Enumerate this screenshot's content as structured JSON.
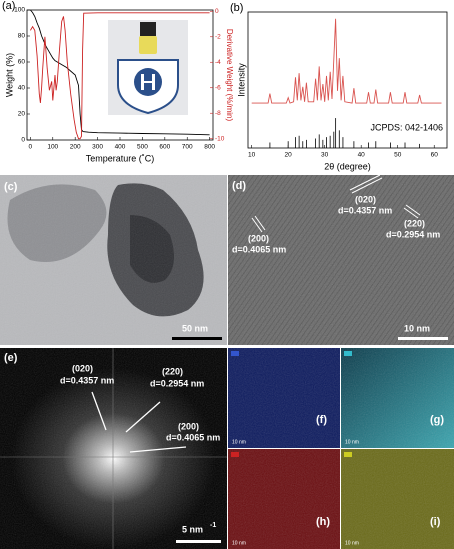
{
  "chart_data": [
    {
      "type": "line",
      "label": "(a)",
      "xlabel": "Temperature (˚C)",
      "ylabel": "Weight (%)",
      "y2label": "Derivative Weight (%/min)",
      "xlim": [
        -15,
        815
      ],
      "xticks": [
        0,
        100,
        200,
        300,
        400,
        500,
        600,
        700,
        800
      ],
      "ylim": [
        0,
        100
      ],
      "yticks": [
        0,
        20,
        40,
        60,
        80,
        100
      ],
      "y2lim": [
        -10.1,
        0.1
      ],
      "y2ticks": [
        0,
        -2,
        -4,
        -6,
        -8,
        -10
      ],
      "series": [
        {
          "color": "#000000",
          "x": [
            0,
            10,
            20,
            30,
            40,
            50,
            60,
            70,
            80,
            90,
            100,
            110,
            120,
            140,
            160,
            180,
            200,
            215,
            222,
            228,
            235,
            260,
            300,
            400,
            500,
            600,
            700,
            800
          ],
          "values": [
            100,
            98,
            95,
            90,
            86,
            80,
            76,
            72,
            69,
            66,
            63,
            61,
            60,
            58,
            56,
            53,
            50,
            42,
            20,
            8,
            6.5,
            6,
            5.6,
            5.3,
            5,
            4.8,
            4.5,
            4
          ]
        },
        {
          "color": "#cc2222",
          "axis": "y2",
          "x": [
            0,
            10,
            20,
            30,
            40,
            45,
            50,
            55,
            65,
            75,
            85,
            95,
            100,
            105,
            110,
            115,
            120,
            130,
            140,
            148,
            155,
            165,
            180,
            195,
            205,
            215,
            222,
            228,
            233,
            238,
            300,
            400,
            500,
            600,
            700,
            800
          ],
          "values": [
            -1.5,
            -1.2,
            -1.5,
            -3.5,
            -6.5,
            -7.2,
            -6,
            -4.5,
            -2,
            -4.5,
            -6.2,
            -5.5,
            -7,
            -6,
            -5,
            -6.2,
            -5.5,
            -3,
            -0.8,
            -0.4,
            -1.5,
            -4,
            -6.5,
            -8.5,
            -9.5,
            -10,
            -10,
            -9.8,
            -3,
            -0.15,
            -0.12,
            -0.12,
            -0.12,
            -0.12,
            -0.12,
            -0.12
          ]
        }
      ]
    },
    {
      "type": "line",
      "label": "(b)",
      "xlabel": "2θ (degree)",
      "ylabel": "Intensity",
      "annotation": "JCPDS: 042-1406",
      "xlim": [
        9,
        63.5
      ],
      "xticks": [
        10,
        20,
        30,
        40,
        50,
        60
      ],
      "ylim": [
        0,
        100
      ],
      "series": [
        {
          "color": "#d9534f",
          "x": [
            10,
            14.5,
            15,
            15.5,
            19.5,
            20,
            20.5,
            21.5,
            22,
            22.5,
            23,
            23.5,
            24,
            24.5,
            25,
            25.5,
            27,
            27.5,
            28,
            28.5,
            29,
            29.5,
            30,
            30.5,
            31,
            31.5,
            32,
            32.5,
            33,
            33.5,
            34,
            34.5,
            35,
            35.5,
            37.5,
            38,
            38.5,
            41.5,
            42,
            42.5,
            43.5,
            44,
            44.5,
            47.5,
            48,
            48.5,
            51.5,
            52,
            52.5,
            55.5,
            56,
            56.5,
            62
          ],
          "values": [
            33,
            33,
            40,
            33,
            33,
            37,
            33,
            34,
            52,
            35,
            55,
            35,
            45,
            34,
            48,
            34,
            34,
            51,
            35,
            60,
            35,
            47,
            34,
            53,
            35,
            56,
            36,
            65,
            95,
            42,
            66,
            35,
            53,
            34,
            33,
            44,
            33,
            33,
            41,
            33,
            33,
            43,
            33,
            33,
            41,
            33,
            33,
            41,
            33,
            33,
            39,
            33,
            33
          ]
        },
        {
          "color": "#000000",
          "style": "stick",
          "x": [
            15,
            20,
            22,
            23,
            24,
            25,
            27.5,
            28.5,
            29.5,
            30.5,
            31.5,
            32.5,
            33,
            34,
            35,
            38,
            42,
            44,
            48,
            52,
            56
          ],
          "values": [
            4,
            5,
            8,
            9,
            5,
            6,
            7,
            10,
            6,
            8,
            9,
            12,
            22,
            13,
            8,
            5,
            4,
            5,
            4,
            4,
            3
          ]
        }
      ]
    }
  ],
  "panels": [
    {
      "label": "(c)",
      "scale_bar": "50 nm"
    },
    {
      "label": "(d)",
      "annotations": [
        {
          "plane": "(020)",
          "spacing": "d=0.4357 nm"
        },
        {
          "plane": "(220)",
          "spacing": "d=0.2954 nm"
        },
        {
          "plane": "(200)",
          "spacing": "d=0.4065 nm"
        }
      ],
      "scale_bar": "10 nm"
    },
    {
      "label": "(e)",
      "annotations": [
        {
          "plane": "(020)",
          "spacing": "d=0.4357 nm"
        },
        {
          "plane": "(220)",
          "spacing": "d=0.2954 nm"
        },
        {
          "plane": "(200)",
          "spacing": "d=0.4065 nm"
        }
      ],
      "scale_bar": "5 nm",
      "scale_bar_exponent": "-1"
    },
    {
      "label": "(f)",
      "scale_bar": "10 nm"
    },
    {
      "label": "(g)",
      "scale_bar": "10 nm"
    },
    {
      "label": "(h)",
      "scale_bar": "10 nm"
    },
    {
      "label": "(i)",
      "scale_bar": "10 nm"
    }
  ]
}
